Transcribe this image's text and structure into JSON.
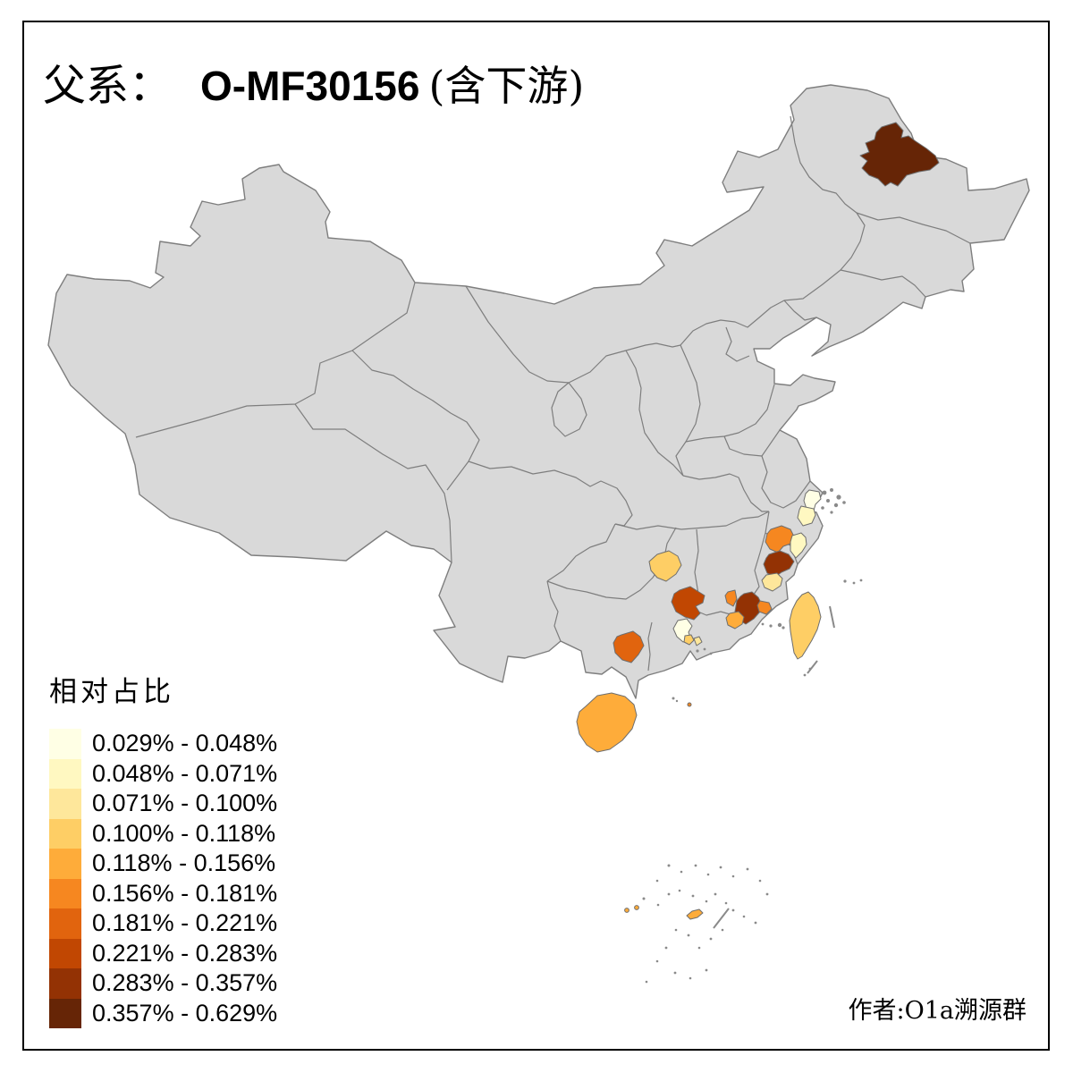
{
  "title": {
    "prefix": "父系：",
    "haplogroup": "O-MF30156",
    "suffix": "(含下游)"
  },
  "legend": {
    "title": "相对占比",
    "bins": [
      {
        "label": "0.029% - 0.048%",
        "color": "#FFFFE5"
      },
      {
        "label": "0.048% - 0.071%",
        "color": "#FFF8C1"
      },
      {
        "label": "0.071% - 0.100%",
        "color": "#FEE79B"
      },
      {
        "label": "0.100% - 0.118%",
        "color": "#FECE65"
      },
      {
        "label": "0.118% - 0.156%",
        "color": "#FEAC3A"
      },
      {
        "label": "0.156% - 0.181%",
        "color": "#F68720"
      },
      {
        "label": "0.181% - 0.221%",
        "color": "#E1640E"
      },
      {
        "label": "0.221% - 0.283%",
        "color": "#C14702"
      },
      {
        "label": "0.283% - 0.357%",
        "color": "#933204"
      },
      {
        "label": "0.357% - 0.629%",
        "color": "#662506"
      }
    ]
  },
  "attribution": "作者:O1a溯源群",
  "map": {
    "background": "#FFFFFF",
    "no_data_fill": "#D9D9D9",
    "boundary_color": "#7E7E7E",
    "region_border_color": "#6E6E6E",
    "frame_color": "#000000",
    "regions": [
      {
        "name": "northeast-heilongjiang-heihe",
        "bin": 10,
        "color": "#662506"
      },
      {
        "name": "east-coast-hangzhou-bay-north",
        "bin": 1,
        "color": "#FFFFE5"
      },
      {
        "name": "east-coast-hangzhou-bay-south",
        "bin": 2,
        "color": "#FFF8C1"
      },
      {
        "name": "south-zhejiang-wenzhou",
        "bin": 6,
        "color": "#F68720"
      },
      {
        "name": "coastal-zhejiang-taizhou",
        "bin": 2,
        "color": "#FFF8C1"
      },
      {
        "name": "northeast-fujian-ningde",
        "bin": 9,
        "color": "#933204"
      },
      {
        "name": "fujian-fuzhou",
        "bin": 3,
        "color": "#FEE79B"
      },
      {
        "name": "south-fujian-quanzhou",
        "bin": 9,
        "color": "#933204"
      },
      {
        "name": "fujian-xiamen",
        "bin": 6,
        "color": "#F68720"
      },
      {
        "name": "fujian-zhangzhou",
        "bin": 5,
        "color": "#FEAC3A"
      },
      {
        "name": "west-fujian-patch",
        "bin": 6,
        "color": "#F68720"
      },
      {
        "name": "guizhou-qiandongnan",
        "bin": 4,
        "color": "#FECE65"
      },
      {
        "name": "guangxi-hunan-border-guilin",
        "bin": 8,
        "color": "#C14702"
      },
      {
        "name": "east-guangxi-wuzhou",
        "bin": 1,
        "color": "#FFFFE5"
      },
      {
        "name": "pearl-delta-patch-a",
        "bin": 4,
        "color": "#FECE65"
      },
      {
        "name": "pearl-delta-patch-b",
        "bin": 3,
        "color": "#FEE79B"
      },
      {
        "name": "south-guangxi-nanning",
        "bin": 7,
        "color": "#E1640E"
      },
      {
        "name": "hainan-island",
        "bin": 5,
        "color": "#FEAC3A"
      },
      {
        "name": "taiwan-island",
        "bin": 4,
        "color": "#FECE65"
      },
      {
        "name": "south-sea-islet-a",
        "bin": 5,
        "color": "#FEAC3A"
      },
      {
        "name": "south-sea-islet-b",
        "bin": 5,
        "color": "#FEAC3A"
      },
      {
        "name": "south-sea-islet-c",
        "bin": 5,
        "color": "#FEAC3A"
      },
      {
        "name": "south-sea-islet-d",
        "bin": 6,
        "color": "#F68720"
      }
    ]
  }
}
